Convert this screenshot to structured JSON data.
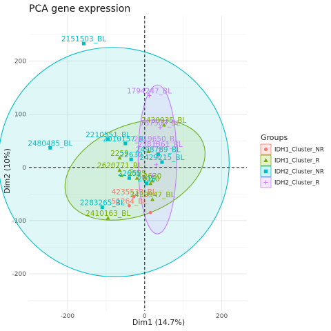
{
  "chart_data": {
    "type": "scatter",
    "title": "PCA gene expression",
    "xlabel": "Dim1 (14.7%)",
    "ylabel": "Dim2 (10%)",
    "xlim": [
      -300,
      265
    ],
    "ylim": [
      -270,
      285
    ],
    "xticks": [
      -200,
      0,
      200
    ],
    "yticks": [
      -200,
      -100,
      0,
      100,
      200
    ],
    "grid": true,
    "reference_lines": {
      "x": 0,
      "y": 0,
      "style": "dashed"
    },
    "legend": {
      "title": "Groups",
      "position": "right"
    },
    "series": [
      {
        "name": "IDH1_Cluster_NR",
        "color": "#F8766D",
        "marker": "circle",
        "points": [
          {
            "x": -28,
            "y": -55,
            "label": "4235533_BL"
          },
          {
            "x": -40,
            "y": -72,
            "label": "51264_BL"
          },
          {
            "x": 15,
            "y": -85,
            "label": ""
          },
          {
            "x": 0,
            "y": -20,
            "label": ""
          }
        ],
        "ellipse": null
      },
      {
        "name": "IDH1_Cluster_R",
        "color": "#7CAE00",
        "marker": "triangle",
        "points": [
          {
            "x": 50,
            "y": 80,
            "label": "2430935_BL"
          },
          {
            "x": -65,
            "y": 18,
            "label": "2259"
          },
          {
            "x": -65,
            "y": -5,
            "label": "2620771_BL"
          },
          {
            "x": -20,
            "y": -20,
            "label": "2585"
          },
          {
            "x": 15,
            "y": -30,
            "label": "7020"
          },
          {
            "x": -95,
            "y": -95,
            "label": "2410163_BL"
          },
          {
            "x": 20,
            "y": -60,
            "label": "2439947_BL"
          },
          {
            "x": 20,
            "y": -25,
            "label": "2630"
          },
          {
            "x": -60,
            "y": -15,
            "label": ""
          },
          {
            "x": 10,
            "y": 30,
            "label": ""
          }
        ],
        "ellipse": {
          "cx": -25,
          "cy": -5,
          "rx": 190,
          "ry": 85,
          "angle_deg": 22
        }
      },
      {
        "name": "IDH2_Cluster_NR",
        "color": "#00BFC4",
        "marker": "square",
        "points": [
          {
            "x": -158,
            "y": 233,
            "label": "2151503_BL"
          },
          {
            "x": -245,
            "y": 37,
            "label": "2480485_BL"
          },
          {
            "x": -95,
            "y": 53,
            "label": "2210551_BL"
          },
          {
            "x": -50,
            "y": 45,
            "label": "2010157_BL"
          },
          {
            "x": -110,
            "y": -75,
            "label": "2283265_BL"
          },
          {
            "x": -35,
            "y": 15,
            "label": "22630"
          },
          {
            "x": -40,
            "y": -20,
            "label": "22605"
          },
          {
            "x": 5,
            "y": -30,
            "label": "2016"
          },
          {
            "x": 35,
            "y": 25,
            "label": "2498789_BL"
          },
          {
            "x": 45,
            "y": 10,
            "label": "2429215_BL"
          }
        ],
        "ellipse": {
          "cx": -80,
          "cy": 10,
          "rx": 300,
          "ry": 215,
          "angle_deg": -30
        }
      },
      {
        "name": "IDH2_Cluster_R",
        "color": "#C77CFF",
        "marker": "star",
        "points": [
          {
            "x": 12,
            "y": 135,
            "label": "1794247_BL"
          },
          {
            "x": 40,
            "y": 75,
            "label": "757509_BL"
          },
          {
            "x": 30,
            "y": 45,
            "label": "2419650_BL"
          },
          {
            "x": 40,
            "y": 35,
            "label": "2381361_BL"
          },
          {
            "x": 35,
            "y": 20,
            "label": ""
          },
          {
            "x": 30,
            "y": 5,
            "label": ""
          },
          {
            "x": 20,
            "y": -15,
            "label": ""
          },
          {
            "x": 10,
            "y": -50,
            "label": ""
          }
        ],
        "ellipse": {
          "cx": 33,
          "cy": 15,
          "rx": 50,
          "ry": 140,
          "angle_deg": 0
        }
      }
    ]
  }
}
